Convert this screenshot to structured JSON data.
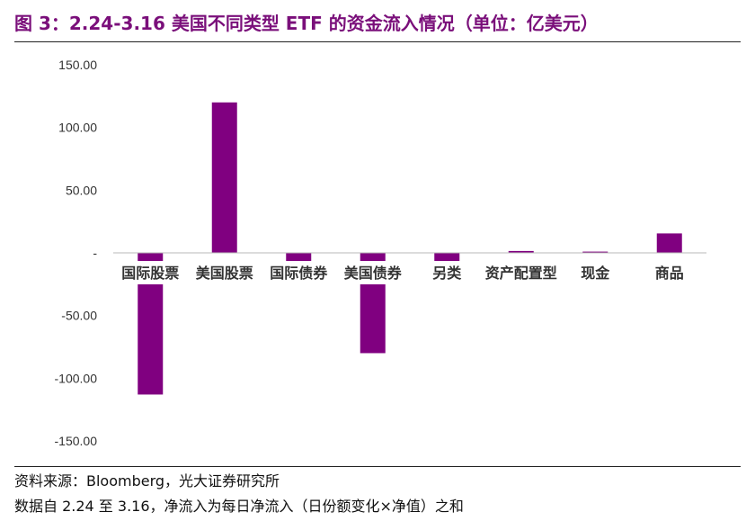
{
  "title": "图 3：2.24-3.16 美国不同类型 ETF 的资金流入情况（单位：亿美元）",
  "source": "资料来源：Bloomberg，光大证券研究所",
  "note": "数据自 2.24 至 3.16，净流入为每日净流入（日份额变化×净值）之和",
  "colors": {
    "bar": "#800080",
    "title": "#7a0f7a",
    "axis": "#b8b8b8"
  },
  "chart_data": {
    "type": "bar",
    "categories": [
      "国际股票",
      "美国股票",
      "国际债券",
      "美国债券",
      "另类",
      "资产配置型",
      "现金",
      "商品"
    ],
    "values": [
      -113,
      120,
      -6.5,
      -80,
      -7,
      1.5,
      1,
      15.5
    ],
    "ylim": [
      -150,
      150
    ],
    "yticks": [
      150,
      100,
      50,
      0,
      -50,
      -100,
      -150
    ],
    "ytick_labels": [
      "150.00",
      "100.00",
      "50.00",
      "-",
      "-50.00",
      "-100.00",
      "-150.00"
    ],
    "grid": false,
    "legend": "none"
  }
}
